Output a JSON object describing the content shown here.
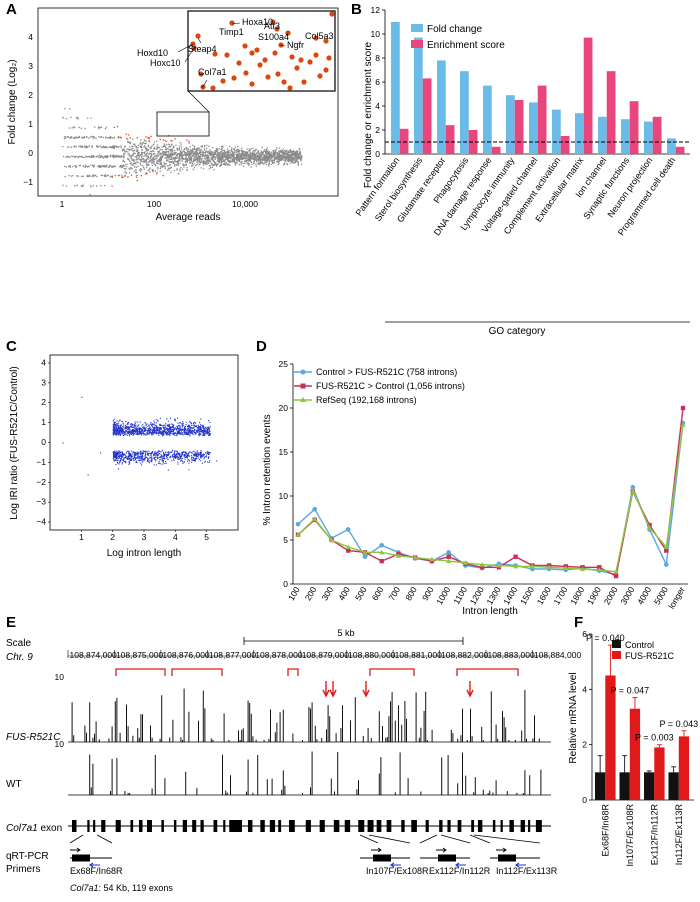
{
  "colors": {
    "fold": "#6bbbe8",
    "enrich": "#e8467c",
    "grey": "#8a8a8a",
    "orange": "#d9480f",
    "blue": "#2233cc",
    "control_line": "#5aa8e0",
    "fus_line": "#c8305a",
    "refseq_line": "#8ec63f",
    "red": "#e01a1a",
    "black": "#111111"
  },
  "panel_labels": {
    "a": "A",
    "b": "B",
    "c": "C",
    "d": "D",
    "e": "E",
    "f": "F"
  },
  "panelA": {
    "ylabel": "Fold change (Log₂)",
    "xlabel": "Average reads",
    "yticks": [
      "4",
      "3",
      "2",
      "1",
      "0",
      "−1"
    ],
    "xticks": [
      "1",
      "100",
      "10,000"
    ],
    "inset_genes": [
      "Hoxa10",
      "Steap4",
      "Timp1",
      "Atf3",
      "S100a4",
      "Ngfr",
      "Col5a3",
      "Hoxd10",
      "Hoxc10",
      "Col7a1"
    ]
  },
  "chart_data": [
    {
      "type": "bar",
      "panel": "B",
      "title": "",
      "xlabel": "GO category",
      "ylabel": "Fold change or enrichment score",
      "ylim": [
        0,
        12
      ],
      "yticks": [
        "0",
        "2",
        "4",
        "6",
        "8",
        "10",
        "12"
      ],
      "categories": [
        "Pattern formation",
        "Sterol biosynthesis",
        "Glutamate receptor",
        "Phagocytosis",
        "DNA damage response",
        "Lymphocyte immunity",
        "Voltage-gated channel",
        "Complement activation",
        "Extracellular matrix",
        "Ion channel",
        "Synaptic functions",
        "Neuron projection",
        "Programmed cell death"
      ],
      "series": [
        {
          "name": "Fold change",
          "values": [
            11.0,
            9.7,
            7.8,
            6.9,
            5.7,
            4.9,
            4.3,
            3.7,
            3.4,
            3.1,
            2.9,
            2.7,
            1.3
          ]
        },
        {
          "name": "Enrichment score",
          "values": [
            2.1,
            6.3,
            2.4,
            2.0,
            0.6,
            4.5,
            5.7,
            1.5,
            9.7,
            6.9,
            4.4,
            3.1,
            0.6
          ]
        }
      ],
      "reference_line": 1.0
    },
    {
      "type": "line",
      "panel": "D",
      "xlabel": "Intron length",
      "ylabel": "% Intron retention events",
      "ylim": [
        0,
        25
      ],
      "yticks": [
        "0",
        "5",
        "10",
        "15",
        "20",
        "25"
      ],
      "categories": [
        "100",
        "200",
        "300",
        "400",
        "500",
        "600",
        "700",
        "800",
        "900",
        "1000",
        "1100",
        "1200",
        "1300",
        "1400",
        "1500",
        "1600",
        "1700",
        "1800",
        "1900",
        "2000",
        "3000",
        "4000",
        "5000",
        "longer"
      ],
      "series": [
        {
          "name": "Control > FUS-R521C (758 introns)",
          "values": [
            6.8,
            8.5,
            5.2,
            6.2,
            3.1,
            4.4,
            3.6,
            2.9,
            2.6,
            3.6,
            2.1,
            1.8,
            2.3,
            2.1,
            1.7,
            1.7,
            1.6,
            1.8,
            1.5,
            1.1,
            11.0,
            6.2,
            2.2,
            18.3
          ]
        },
        {
          "name": "FUS-R521C > Control (1,056 introns)",
          "values": [
            5.6,
            7.3,
            5.0,
            3.8,
            3.6,
            2.6,
            3.4,
            3.0,
            2.6,
            3.1,
            2.3,
            1.9,
            1.9,
            3.1,
            2.1,
            2.1,
            2.0,
            1.9,
            1.9,
            0.9,
            10.5,
            6.7,
            3.8,
            20.0
          ]
        },
        {
          "name": "RefSeq (192,168 introns)",
          "values": [
            5.6,
            7.4,
            5.0,
            4.2,
            3.6,
            3.6,
            3.2,
            3.0,
            2.8,
            2.6,
            2.4,
            2.2,
            2.1,
            2.0,
            2.0,
            1.9,
            1.8,
            1.7,
            1.6,
            1.4,
            10.6,
            6.4,
            4.2,
            18.1
          ]
        }
      ]
    },
    {
      "type": "bar",
      "panel": "F",
      "ylabel": "Relative mRNA level",
      "ylim": [
        0,
        6
      ],
      "yticks": [
        "0",
        "2",
        "4",
        "6"
      ],
      "categories": [
        "Ex68F/In68R",
        "In107F/Ex108R",
        "Ex112F/In112R",
        "In112F/Ex113R"
      ],
      "series": [
        {
          "name": "Control",
          "values": [
            1.0,
            1.0,
            1.0,
            1.0
          ],
          "errors": [
            0.6,
            0.6,
            0.05,
            0.2
          ]
        },
        {
          "name": "FUS-R521C",
          "values": [
            4.5,
            3.3,
            1.9,
            2.3
          ],
          "errors": [
            1.1,
            0.4,
            0.1,
            0.2
          ]
        }
      ],
      "pvalues": [
        "P = 0.040",
        "P = 0.047",
        "P = 0.003",
        "P = 0.043"
      ]
    }
  ],
  "panelB": {
    "legend_fold": "Fold change",
    "legend_enrich": "Enrichment score"
  },
  "panelC": {
    "ylabel": "Log IRI ratio (FUS-R521C/Control)",
    "xlabel": "Log intron length",
    "yticks": [
      "4",
      "3",
      "2",
      "1",
      "0",
      "−1",
      "−2",
      "−3",
      "−4"
    ],
    "xticks": [
      "1",
      "2",
      "3",
      "4",
      "5"
    ]
  },
  "panelD": {
    "legend": [
      "Control > FUS-R521C (758 introns)",
      "FUS-R521C > Control (1,056 introns)",
      "RefSeq (192,168 introns)"
    ]
  },
  "panelE": {
    "scale_label": "Scale",
    "chr_label": "Chr. 9",
    "scale_bar": "5 kb",
    "coords": [
      "108,874,000",
      "108,875,000",
      "108,876,000",
      "108,877,000",
      "108,878,000",
      "108,879,000",
      "108,880,000",
      "108,881,000",
      "108,882,000",
      "108,883,000",
      "108,884,000"
    ],
    "track1": "FUS-R521C",
    "track2": "WT",
    "track_max": "10",
    "exon_track": "Col7a1",
    "exon_suffix": " exon",
    "primers_label": "qRT-PCR\nPrimers",
    "primers_line1": "qRT-PCR",
    "primers_line2": "Primers",
    "primer_names": [
      "Ex68F/In68R",
      "In107F/Ex108R",
      "Ex112F/In112R",
      "In112F/Ex113R"
    ],
    "gene_name": "Col7a1",
    "gene_info": ": 54 Kb, 119 exons"
  },
  "panelF": {
    "legend": [
      "Control",
      "FUS-R521C"
    ]
  }
}
